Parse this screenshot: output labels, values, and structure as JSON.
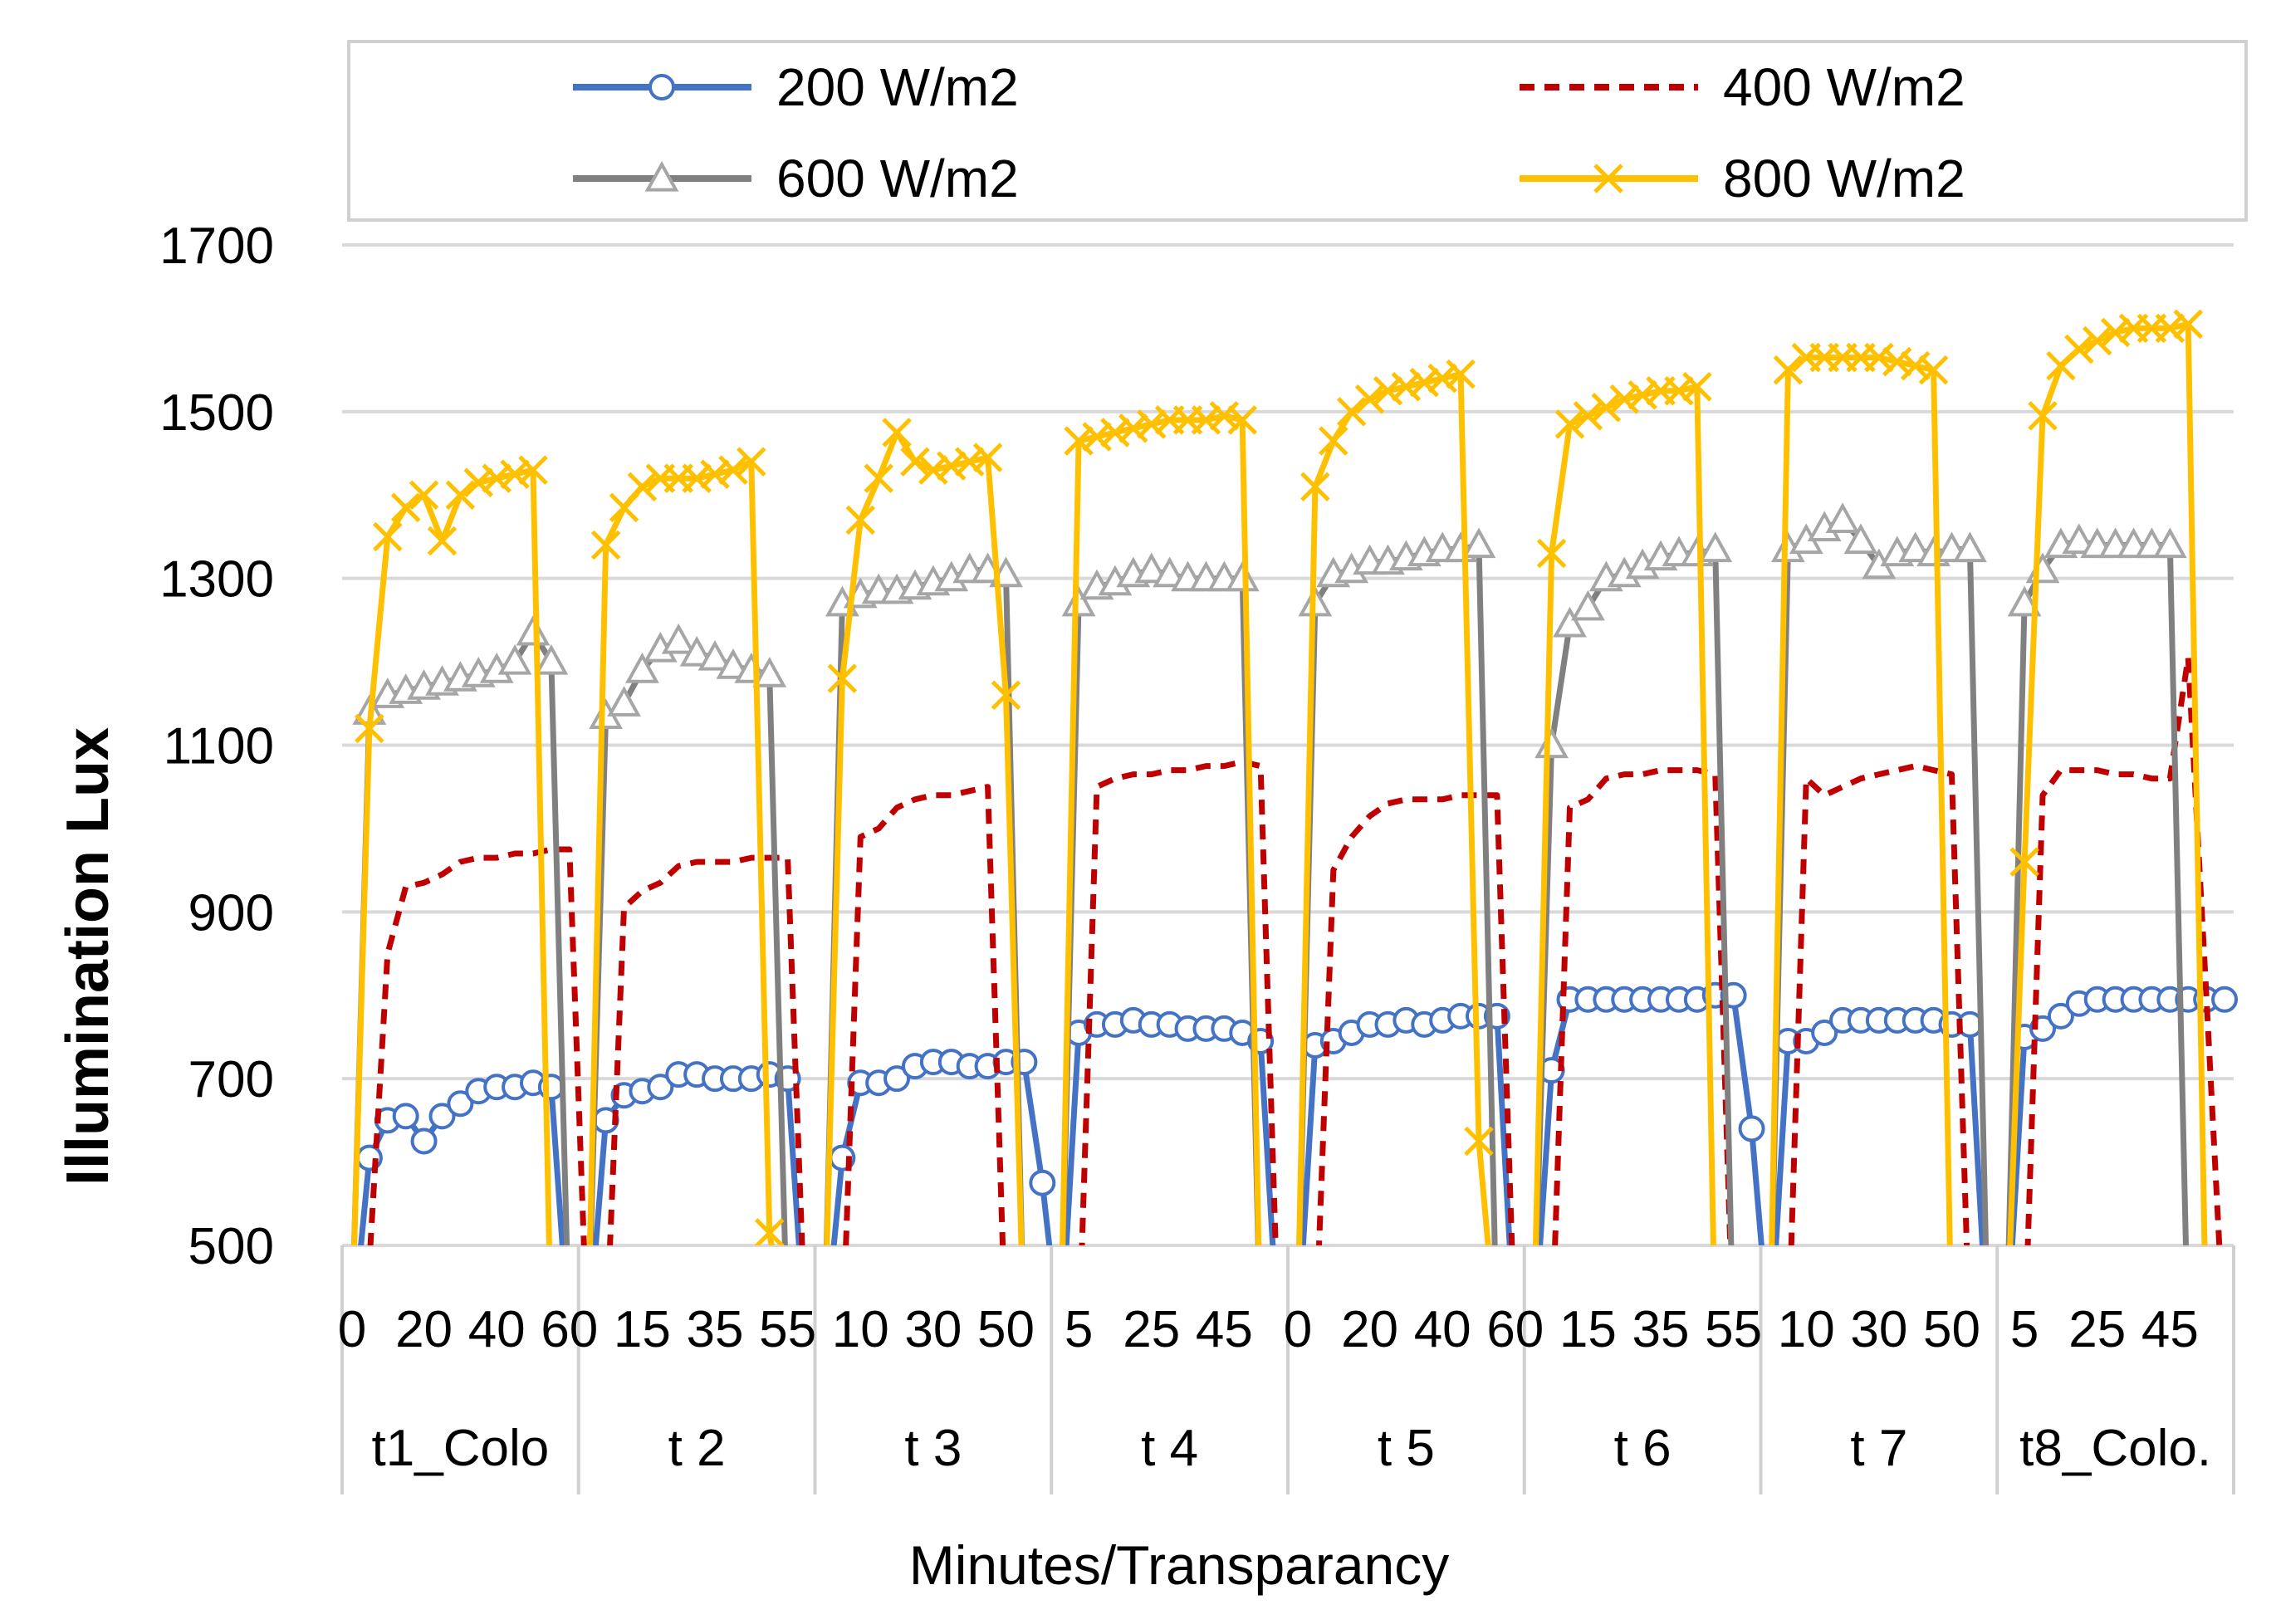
{
  "chart_data": {
    "type": "line",
    "title": "",
    "xlabel": "Minutes/Transparancy",
    "ylabel": "Illumination  Lux",
    "ylim": [
      500,
      1700
    ],
    "yticks": [
      500,
      700,
      900,
      1100,
      1300,
      1500,
      1700
    ],
    "grid": "horizontal",
    "legend_position": "top",
    "groups": [
      "t1_Colo",
      "t 2",
      "t 3",
      "t 4",
      "t 5",
      "t 6",
      "t 7",
      "t8_Colo."
    ],
    "minute_labels": [
      [
        "0",
        "20",
        "40",
        "60"
      ],
      [
        "15",
        "35",
        "55"
      ],
      [
        "10",
        "30",
        "50"
      ],
      [
        "5",
        "25",
        "45"
      ],
      [
        "0",
        "20",
        "40",
        "60"
      ],
      [
        "15",
        "35",
        "55"
      ],
      [
        "10",
        "30",
        "50"
      ],
      [
        "5",
        "25",
        "45"
      ]
    ],
    "x_note": "Each transparency group spans 13 samples at 5-minute steps; values are given per sample in order.",
    "series": [
      {
        "name": "200 W/m2",
        "color": "#4472C4",
        "style": "solid",
        "marker": "circle",
        "values": [
          [
            0,
            605,
            650,
            655,
            625,
            655,
            670,
            685,
            690,
            690,
            695,
            690,
            0
          ],
          [
            0,
            650,
            680,
            685,
            690,
            705,
            705,
            700,
            700,
            700,
            705,
            700,
            0
          ],
          [
            0,
            605,
            695,
            695,
            700,
            715,
            720,
            720,
            715,
            715,
            720,
            720,
            575
          ],
          [
            0,
            755,
            765,
            765,
            770,
            765,
            765,
            760,
            760,
            760,
            755,
            745,
            0
          ],
          [
            0,
            740,
            745,
            755,
            765,
            765,
            770,
            765,
            770,
            775,
            775,
            775,
            0
          ],
          [
            0,
            710,
            795,
            795,
            795,
            795,
            795,
            795,
            795,
            795,
            800,
            800,
            640
          ],
          [
            0,
            745,
            745,
            755,
            770,
            770,
            770,
            770,
            770,
            770,
            765,
            765,
            0
          ],
          [
            0,
            750,
            760,
            775,
            790,
            795,
            795,
            795,
            795,
            795,
            795,
            795,
            795
          ]
        ]
      },
      {
        "name": "400 W/m2",
        "color": "#C00000",
        "style": "dashed",
        "marker": "none",
        "values": [
          [
            0,
            480,
            850,
            930,
            935,
            945,
            960,
            965,
            965,
            970,
            970,
            975,
            975
          ],
          [
            0,
            0,
            905,
            925,
            935,
            955,
            960,
            960,
            960,
            965,
            965,
            965,
            0
          ],
          [
            0,
            0,
            990,
            1000,
            1025,
            1035,
            1040,
            1040,
            1045,
            1050,
            0,
            0,
            0
          ],
          [
            0,
            0,
            1050,
            1060,
            1065,
            1065,
            1070,
            1070,
            1075,
            1075,
            1080,
            1075,
            0
          ],
          [
            0,
            0,
            950,
            990,
            1015,
            1030,
            1035,
            1035,
            1035,
            1040,
            1040,
            1040,
            0
          ],
          [
            0,
            0,
            1025,
            1035,
            1060,
            1065,
            1065,
            1070,
            1070,
            1070,
            1065,
            0,
            0
          ],
          [
            0,
            0,
            1060,
            1040,
            1050,
            1060,
            1065,
            1070,
            1075,
            1070,
            1065,
            0,
            0
          ],
          [
            0,
            0,
            1040,
            1070,
            1070,
            1070,
            1065,
            1065,
            1060,
            1060,
            1205,
            800,
            0
          ]
        ]
      },
      {
        "name": "600 W/m2",
        "color": "#808080",
        "style": "solid",
        "marker": "triangle",
        "values": [
          [
            0,
            1140,
            1160,
            1165,
            1170,
            1175,
            1180,
            1185,
            1190,
            1200,
            1235,
            1200,
            0
          ],
          [
            0,
            1135,
            1150,
            1190,
            1215,
            1225,
            1210,
            1205,
            1195,
            1190,
            1185,
            0,
            0
          ],
          [
            0,
            1270,
            1280,
            1285,
            1285,
            1290,
            1295,
            1300,
            1310,
            1310,
            1305,
            0,
            0
          ],
          [
            0,
            1270,
            1290,
            1295,
            1305,
            1310,
            1305,
            1300,
            1300,
            1300,
            1300,
            0,
            0
          ],
          [
            0,
            1270,
            1305,
            1310,
            1320,
            1320,
            1325,
            1330,
            1335,
            1335,
            1340,
            0,
            0
          ],
          [
            0,
            1100,
            1245,
            1265,
            1300,
            1305,
            1315,
            1325,
            1330,
            1330,
            1335,
            0,
            0
          ],
          [
            0,
            1335,
            1345,
            1360,
            1370,
            1345,
            1315,
            1330,
            1335,
            1330,
            1335,
            1335,
            0
          ],
          [
            0,
            1270,
            1310,
            1340,
            1345,
            1340,
            1340,
            1340,
            1340,
            1340,
            0,
            0,
            0
          ]
        ]
      },
      {
        "name": "800 W/m2",
        "color": "#FFC000",
        "style": "solid",
        "marker": "x",
        "values": [
          [
            0,
            1120,
            1350,
            1385,
            1400,
            1345,
            1400,
            1415,
            1420,
            1425,
            1430,
            0,
            0
          ],
          [
            0,
            1340,
            1385,
            1410,
            1420,
            1420,
            1420,
            1425,
            1430,
            1440,
            515,
            0,
            0
          ],
          [
            0,
            1180,
            1370,
            1420,
            1475,
            1440,
            1430,
            1435,
            1440,
            1445,
            1160,
            0,
            0
          ],
          [
            0,
            1465,
            1470,
            1475,
            1480,
            1485,
            1490,
            1490,
            1490,
            1495,
            1490,
            0,
            0
          ],
          [
            0,
            1410,
            1465,
            1500,
            1515,
            1525,
            1530,
            1535,
            1540,
            1545,
            625,
            0,
            0
          ],
          [
            0,
            1330,
            1485,
            1495,
            1505,
            1515,
            1520,
            1525,
            1525,
            1530,
            0,
            0,
            0
          ],
          [
            0,
            1550,
            1565,
            1565,
            1565,
            1565,
            1565,
            1560,
            1555,
            1550,
            0,
            0,
            0
          ],
          [
            0,
            960,
            1495,
            1555,
            1575,
            1585,
            1595,
            1600,
            1600,
            1600,
            1605,
            0,
            0
          ]
        ]
      }
    ]
  }
}
